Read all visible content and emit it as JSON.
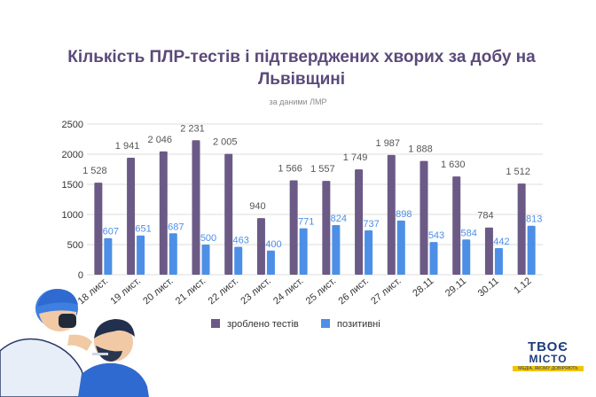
{
  "title": "Кількість ПЛР-тестів і підтверджених хворих за добу на Львівщині",
  "subtitle": "за даними ЛМР",
  "brand": {
    "name_top": "ТВОЄ",
    "name_bottom": "МІСТО",
    "tagline": "МЕДІА, ЯКОМУ ДОВІРЯЮТЬ"
  },
  "colors": {
    "tests": "#6b5a86",
    "positive": "#4d8fe6",
    "title": "#5a4a7a",
    "grid": "#dddddd"
  },
  "chart_data": {
    "type": "bar",
    "title": "Кількість ПЛР-тестів і підтверджених хворих за добу на Львівщині",
    "subtitle": "за даними ЛМР",
    "categories": [
      "18 лист.",
      "19 лист.",
      "20 лист.",
      "21 лист.",
      "22 лист.",
      "23 лист.",
      "24 лист.",
      "25 лист.",
      "26 лист.",
      "27 лист.",
      "28.11",
      "29.11",
      "30.11",
      "1.12"
    ],
    "series": [
      {
        "name": "зроблено тестів",
        "values": [
          1528,
          1941,
          2046,
          2231,
          2005,
          940,
          1566,
          1557,
          1749,
          1987,
          1888,
          1630,
          784,
          1512
        ],
        "labels": [
          "1 528",
          "1 941",
          "2 046",
          "2 231",
          "2 005",
          "940",
          "1 566",
          "1 557",
          "1 749",
          "1 987",
          "1 888",
          "1 630",
          "784",
          "1 512"
        ]
      },
      {
        "name": "позитивні",
        "values": [
          607,
          651,
          687,
          500,
          463,
          400,
          771,
          824,
          737,
          898,
          543,
          584,
          442,
          813
        ],
        "labels": [
          "607",
          "651",
          "687",
          "500",
          "463",
          "400",
          "771",
          "824",
          "737",
          "898",
          "543",
          "584",
          "442",
          "813"
        ]
      }
    ],
    "yticks": [
      "0",
      "500",
      "1000",
      "1500",
      "2000",
      "2500"
    ],
    "ylim": [
      0,
      2500
    ],
    "grid": true,
    "legend_position": "bottom"
  }
}
